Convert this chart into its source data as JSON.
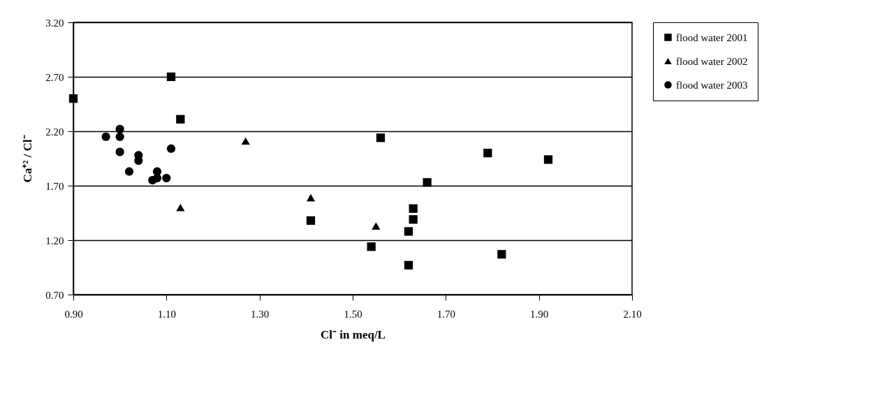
{
  "chart_data": {
    "type": "scatter",
    "xlabel": "Cl⁻ in meq/L",
    "ylabel": "Ca⁺² / Cl⁻",
    "xlim": [
      0.9,
      2.1
    ],
    "ylim": [
      0.7,
      3.2
    ],
    "xticks": [
      {
        "value": 0.9,
        "label": "0.90"
      },
      {
        "value": 1.1,
        "label": "1.10"
      },
      {
        "value": 1.3,
        "label": "1.30"
      },
      {
        "value": 1.5,
        "label": "1.50"
      },
      {
        "value": 1.7,
        "label": "1.70"
      },
      {
        "value": 1.9,
        "label": "1.90"
      },
      {
        "value": 2.1,
        "label": "2.10"
      }
    ],
    "yticks": [
      {
        "value": 0.7,
        "label": "0.70"
      },
      {
        "value": 1.2,
        "label": "1.20"
      },
      {
        "value": 1.7,
        "label": "1.70"
      },
      {
        "value": 2.2,
        "label": "2.20"
      },
      {
        "value": 2.7,
        "label": "2.70"
      },
      {
        "value": 3.2,
        "label": "3.20"
      }
    ],
    "grid": "y",
    "legend": "right",
    "series": [
      {
        "name": "flood water 2001",
        "color": "#000000",
        "marker": "square",
        "x": [
          0.9,
          1.11,
          1.13,
          1.56,
          1.41,
          1.54,
          1.66,
          1.63,
          1.63,
          1.62,
          1.62,
          1.79,
          1.92,
          1.82
        ],
        "values": [
          2.5,
          2.7,
          2.31,
          2.14,
          1.38,
          1.14,
          1.73,
          1.49,
          1.39,
          1.28,
          0.97,
          2.0,
          1.94,
          1.07
        ]
      },
      {
        "name": "flood water 2002",
        "color": "#000000",
        "marker": "triangle",
        "x": [
          1.27,
          1.13,
          1.41,
          1.55
        ],
        "values": [
          2.11,
          1.5,
          1.59,
          1.33
        ]
      },
      {
        "name": "flood water 2003",
        "color": "#000000",
        "marker": "circle",
        "x": [
          0.97,
          1.0,
          1.0,
          1.0,
          1.04,
          1.04,
          1.02,
          1.11,
          1.08,
          1.1,
          1.08,
          1.07
        ],
        "values": [
          2.15,
          2.22,
          2.15,
          2.01,
          1.98,
          1.93,
          1.83,
          2.04,
          1.83,
          1.77,
          1.77,
          1.75
        ]
      }
    ]
  }
}
